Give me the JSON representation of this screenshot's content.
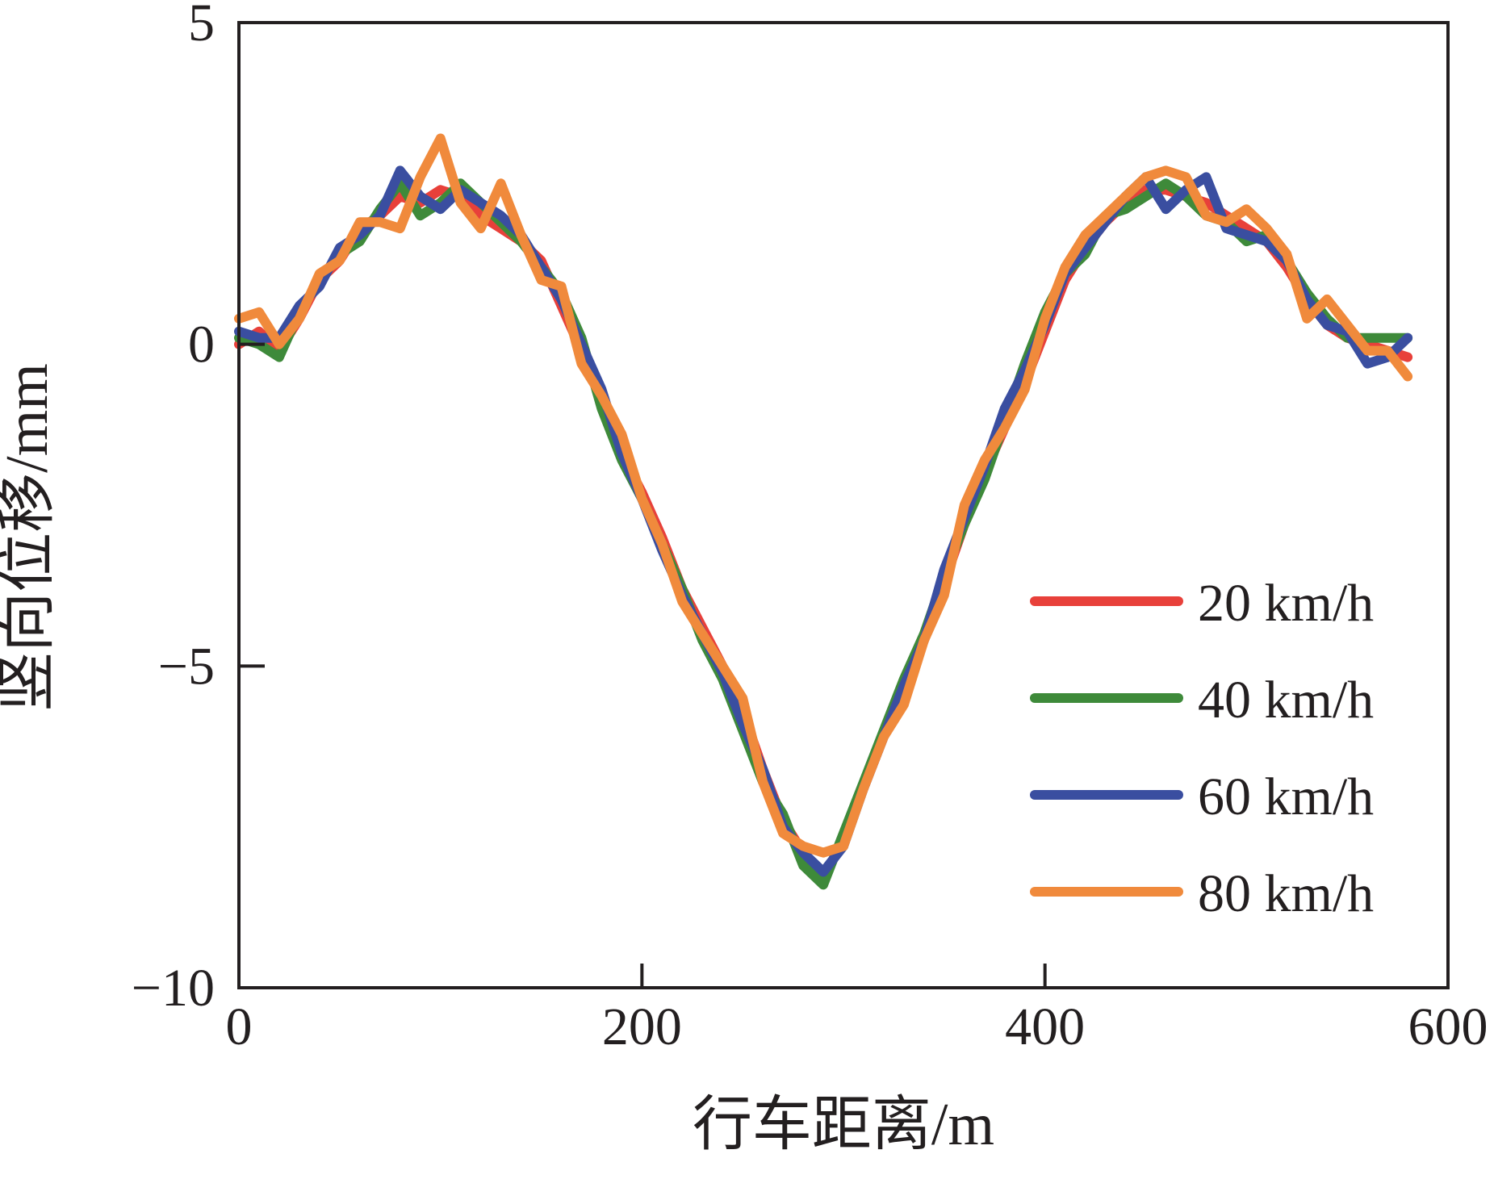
{
  "colors": {
    "axis": "#231f20",
    "background": "#ffffff"
  },
  "chart_data": {
    "type": "line",
    "title": "",
    "xlabel": "行车距离/m",
    "ylabel": "竖向位移/mm",
    "xlim": [
      0,
      600
    ],
    "ylim": [
      -10,
      5
    ],
    "xticks": [
      0,
      200,
      400,
      600
    ],
    "xtick_labels": [
      "0",
      "200",
      "400",
      "600"
    ],
    "yticks": [
      5,
      0,
      -5,
      -10
    ],
    "ytick_labels": [
      "5",
      "0",
      "−5",
      "−10"
    ],
    "grid": false,
    "legend_position": "bottom-right",
    "x": [
      0,
      10,
      20,
      30,
      40,
      50,
      60,
      70,
      80,
      90,
      100,
      110,
      120,
      130,
      140,
      150,
      160,
      170,
      180,
      190,
      200,
      210,
      220,
      230,
      240,
      250,
      260,
      270,
      280,
      290,
      300,
      310,
      320,
      330,
      340,
      350,
      360,
      370,
      380,
      390,
      400,
      410,
      420,
      430,
      440,
      450,
      460,
      470,
      480,
      490,
      500,
      510,
      520,
      530,
      540,
      550,
      560,
      570,
      580
    ],
    "series": [
      {
        "name": "20 km/h",
        "color": "#e8403a",
        "values": [
          0.0,
          0.2,
          -0.1,
          0.4,
          1.0,
          1.3,
          1.8,
          2.0,
          2.3,
          2.2,
          2.4,
          2.3,
          2.0,
          1.8,
          1.6,
          1.3,
          0.6,
          -0.1,
          -0.9,
          -1.7,
          -2.3,
          -3.0,
          -3.8,
          -4.4,
          -5.0,
          -5.7,
          -6.6,
          -7.4,
          -7.9,
          -8.3,
          -7.7,
          -6.9,
          -6.1,
          -5.3,
          -4.6,
          -3.7,
          -2.8,
          -2.0,
          -1.3,
          -0.6,
          0.2,
          1.0,
          1.5,
          1.9,
          2.2,
          2.4,
          2.4,
          2.3,
          2.2,
          2.0,
          1.8,
          1.6,
          1.2,
          0.7,
          0.3,
          0.1,
          0.0,
          -0.1,
          -0.2
        ]
      },
      {
        "name": "40 km/h",
        "color": "#3e8a3a",
        "values": [
          0.1,
          0.0,
          -0.2,
          0.5,
          1.0,
          1.4,
          1.6,
          2.1,
          2.5,
          2.0,
          2.2,
          2.5,
          2.2,
          1.9,
          1.6,
          1.2,
          0.8,
          0.1,
          -1.0,
          -1.8,
          -2.4,
          -3.1,
          -3.8,
          -4.6,
          -5.2,
          -6.0,
          -6.8,
          -7.3,
          -8.1,
          -8.4,
          -7.6,
          -6.8,
          -6.0,
          -5.2,
          -4.5,
          -3.6,
          -2.8,
          -2.1,
          -1.2,
          -0.3,
          0.5,
          1.1,
          1.4,
          2.0,
          2.1,
          2.3,
          2.5,
          2.3,
          2.0,
          1.9,
          1.6,
          1.7,
          1.3,
          0.8,
          0.4,
          0.1,
          0.1,
          0.1,
          0.1
        ]
      },
      {
        "name": "60 km/h",
        "color": "#3a4ea0",
        "values": [
          0.2,
          0.1,
          0.1,
          0.6,
          0.9,
          1.5,
          1.7,
          2.0,
          2.7,
          2.3,
          2.1,
          2.4,
          2.2,
          2.0,
          1.7,
          1.2,
          0.7,
          0.0,
          -0.7,
          -1.7,
          -2.4,
          -3.2,
          -3.9,
          -4.5,
          -5.1,
          -5.9,
          -6.6,
          -7.5,
          -7.9,
          -8.2,
          -7.8,
          -6.9,
          -6.1,
          -5.3,
          -4.6,
          -3.5,
          -2.7,
          -1.9,
          -1.0,
          -0.4,
          0.3,
          1.1,
          1.5,
          1.9,
          2.3,
          2.6,
          2.1,
          2.4,
          2.6,
          1.8,
          1.7,
          1.6,
          1.3,
          0.7,
          0.3,
          0.2,
          -0.3,
          -0.2,
          0.1
        ]
      },
      {
        "name": "80 km/h",
        "color": "#f08a3c",
        "values": [
          0.4,
          0.5,
          0.0,
          0.4,
          1.1,
          1.3,
          1.9,
          1.9,
          1.8,
          2.6,
          3.2,
          2.2,
          1.8,
          2.5,
          1.7,
          1.0,
          0.9,
          -0.3,
          -0.8,
          -1.4,
          -2.4,
          -3.1,
          -4.0,
          -4.5,
          -5.0,
          -5.5,
          -6.8,
          -7.6,
          -7.8,
          -7.9,
          -7.8,
          -6.9,
          -6.1,
          -5.6,
          -4.6,
          -3.9,
          -2.5,
          -1.8,
          -1.3,
          -0.7,
          0.4,
          1.2,
          1.7,
          2.0,
          2.3,
          2.6,
          2.7,
          2.6,
          2.0,
          1.9,
          2.1,
          1.8,
          1.4,
          0.4,
          0.7,
          0.3,
          -0.1,
          -0.1,
          -0.5
        ]
      }
    ]
  }
}
